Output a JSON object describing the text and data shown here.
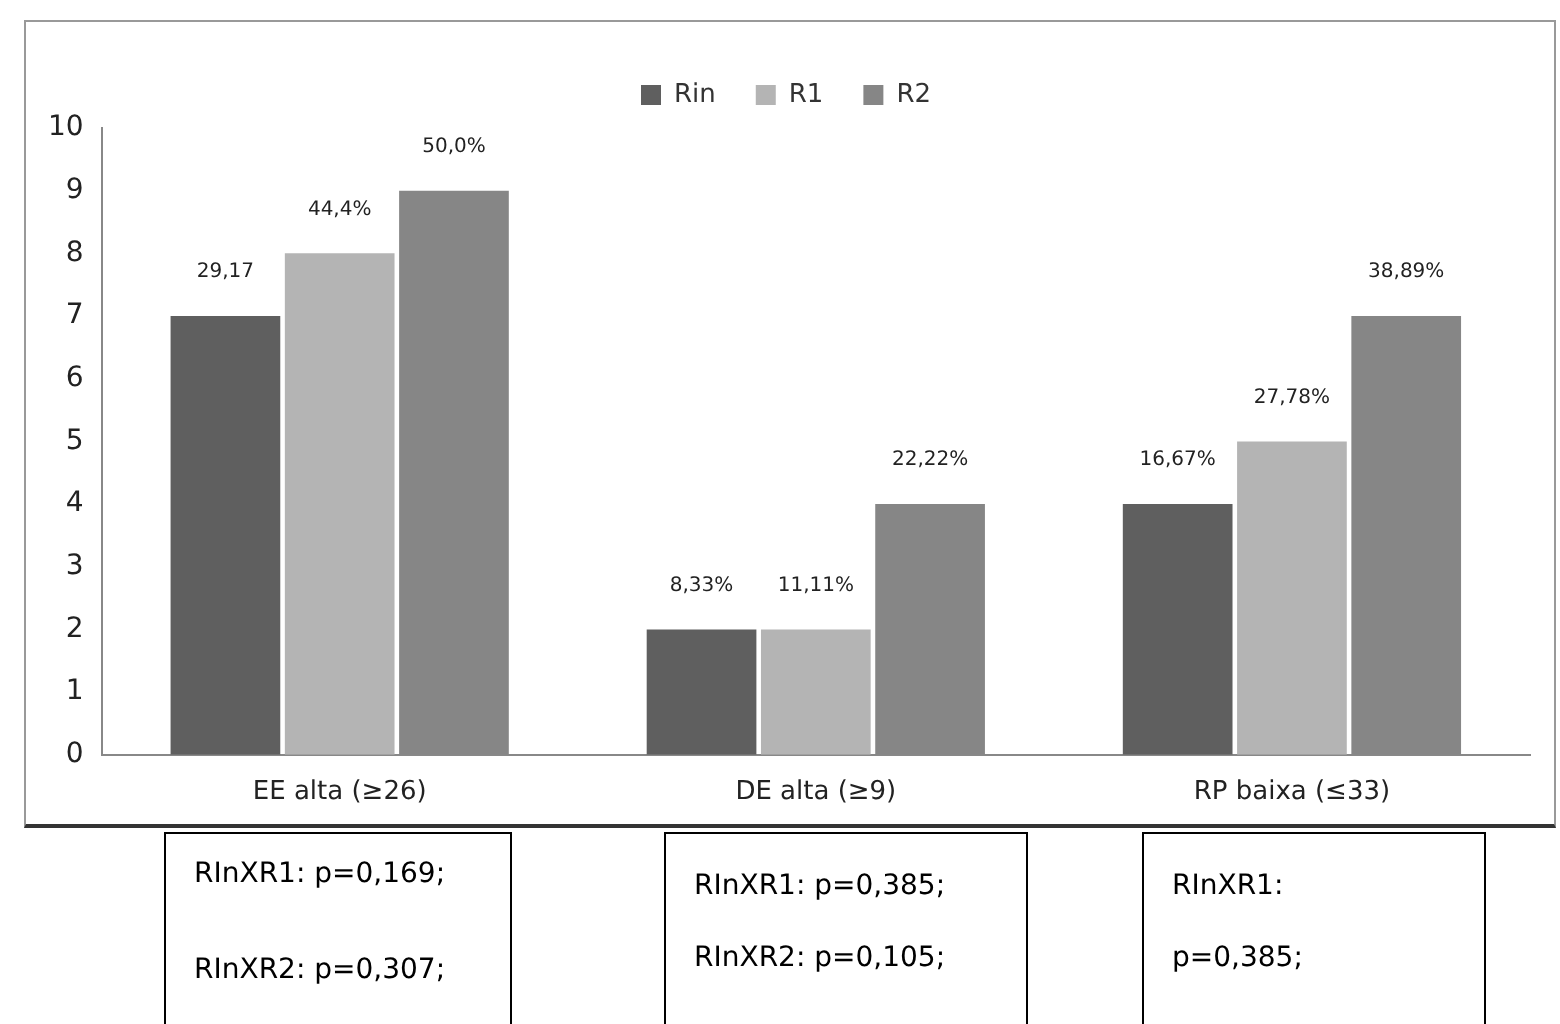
{
  "chart_data": {
    "type": "bar",
    "categories": [
      "EE alta (≥26)",
      "DE alta (≥9)",
      "RP baixa (≤33)"
    ],
    "series": [
      {
        "name": "Rin",
        "color": "#5f5f5f",
        "values": [
          7,
          2,
          4
        ]
      },
      {
        "name": "R1",
        "color": "#b4b4b4",
        "values": [
          8,
          2,
          5
        ]
      },
      {
        "name": "R2",
        "color": "#868686",
        "values": [
          9,
          4,
          7
        ]
      }
    ],
    "ylim": [
      0,
      10
    ],
    "yticks": [
      0,
      1,
      2,
      3,
      4,
      5,
      6,
      7,
      8,
      9,
      10
    ],
    "grid": false,
    "legend": "top",
    "annotations": [
      "29,17",
      "44,4%",
      "50,0%",
      "8,33%",
      "11,11%",
      "22,22%",
      "16,67%",
      "27,78%",
      "38,89%",
      "RInXR1: p=0,169;\n\nRInXR2: p=0,307;",
      "RInXR1: p=0,385;\nRInXR2: p=0,105;",
      "RInXR1:\np=0,385;"
    ]
  }
}
